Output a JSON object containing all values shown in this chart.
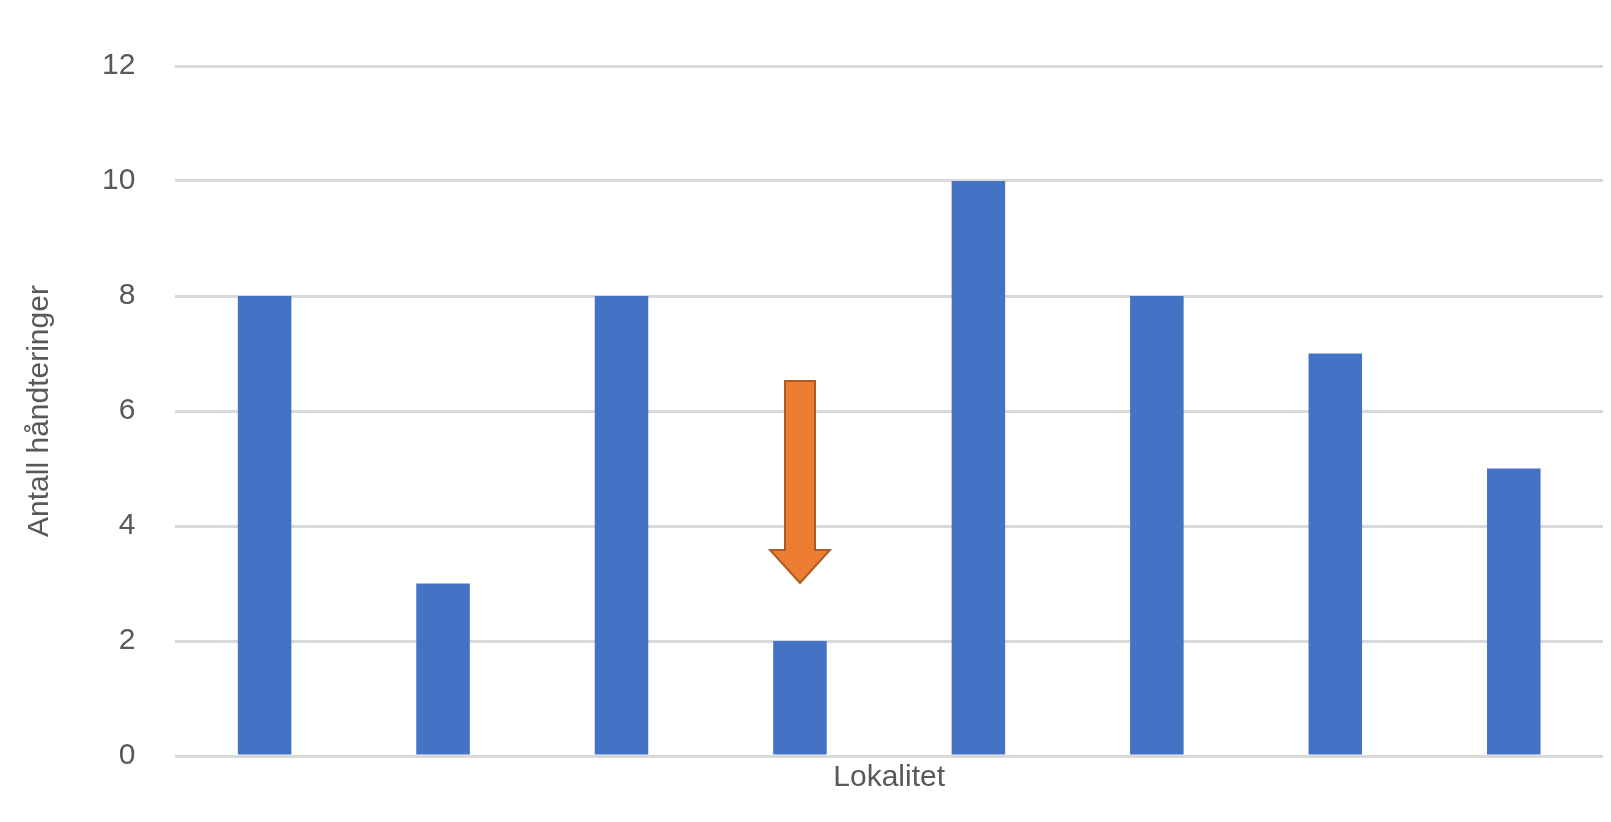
{
  "chart_data": {
    "type": "bar",
    "xlabel": "Lokalitet",
    "ylabel": "Antall håndteringer",
    "categories": [
      null,
      null,
      null,
      null,
      null,
      null,
      null,
      null
    ],
    "values": [
      8,
      3,
      8,
      2,
      10,
      8,
      7,
      5
    ],
    "color": "#4472c4",
    "ylim": [
      0,
      12
    ],
    "yticks": [
      0,
      2,
      4,
      6,
      8,
      10,
      12
    ],
    "grid": "y",
    "tick_labels": "y"
  }
}
